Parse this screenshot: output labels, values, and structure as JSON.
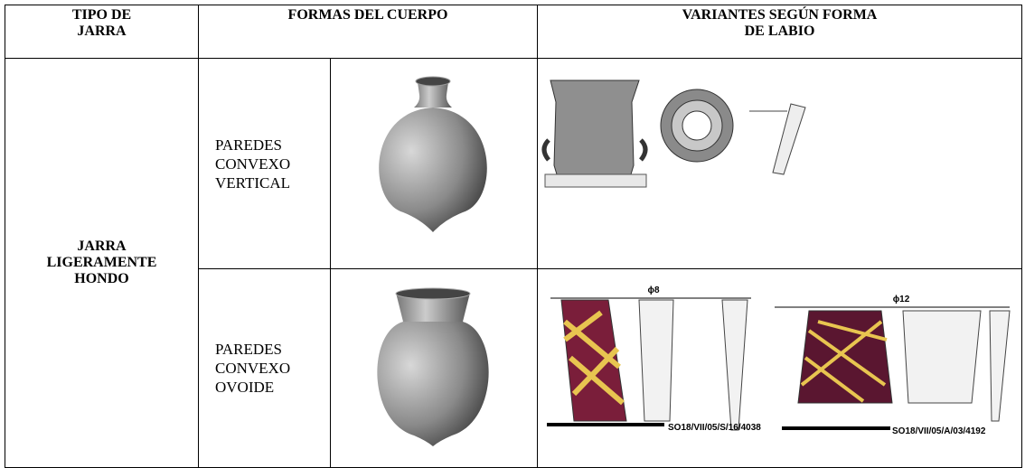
{
  "table": {
    "header": [
      "TIPO DE\nJARRA",
      "FORMAS DEL CUERPO",
      "VARIANTES SEGÚN FORMA\nDE LABIO"
    ],
    "jar_type": "JARRA\nLIGERAMENTE\nHONDO",
    "rows": [
      {
        "form": "PAREDES\nCONVEXO\nVERTICAL"
      },
      {
        "form": "PAREDES\nCONVEXO\nOVOIDE",
        "drawing_labels": [
          "ϕ8",
          "SO18/VII/05/S/16/4038",
          "ϕ12",
          "SO18/VII/05/A/03/4192"
        ]
      }
    ]
  }
}
